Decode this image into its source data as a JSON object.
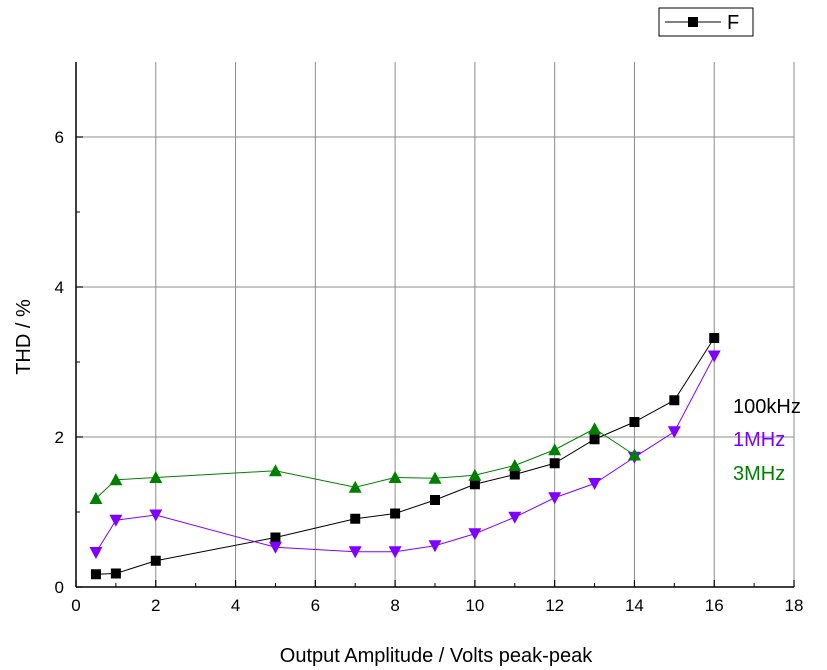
{
  "chart_data": {
    "type": "line",
    "xlabel": "Output Amplitude / Volts peak-peak",
    "ylabel": "THD / %",
    "xlim": [
      0,
      18
    ],
    "ylim": [
      0,
      7
    ],
    "x_ticks": [
      0,
      2,
      4,
      6,
      8,
      10,
      12,
      14,
      16,
      18
    ],
    "y_ticks": [
      0,
      2,
      4,
      6
    ],
    "x_tick_labels": [
      "0",
      "2",
      "4",
      "6",
      "8",
      "10",
      "12",
      "14",
      "16",
      "18"
    ],
    "y_tick_labels": [
      "0",
      "2",
      "4",
      "6"
    ],
    "grid": true,
    "legend": {
      "position": "top-right",
      "entries": [
        "F"
      ]
    },
    "series": [
      {
        "name": "F",
        "color": "#000000",
        "marker": "square",
        "x": [
          0.5,
          1,
          2,
          5,
          7,
          8,
          9,
          10,
          11,
          12,
          13,
          14,
          15,
          16
        ],
        "y": [
          0.17,
          0.18,
          0.35,
          0.66,
          0.91,
          0.98,
          1.16,
          1.37,
          1.5,
          1.65,
          1.97,
          2.2,
          2.49,
          3.32
        ]
      },
      {
        "color": "#8000ff",
        "marker": "triangle-down",
        "x": [
          0.5,
          1,
          2,
          5,
          7,
          8,
          9,
          10,
          11,
          12,
          13,
          14,
          15,
          16
        ],
        "y": [
          0.46,
          0.89,
          0.96,
          0.53,
          0.47,
          0.47,
          0.55,
          0.71,
          0.93,
          1.19,
          1.38,
          1.73,
          2.07,
          3.08
        ]
      },
      {
        "color": "#008000",
        "marker": "triangle-up",
        "x": [
          0.5,
          1,
          2,
          5,
          7,
          8,
          9,
          10,
          11,
          12,
          13,
          14
        ],
        "y": [
          1.18,
          1.43,
          1.46,
          1.55,
          1.33,
          1.46,
          1.45,
          1.49,
          1.62,
          1.83,
          2.11,
          1.76
        ]
      }
    ],
    "annotations": [
      {
        "text": "100kHz",
        "color": "#000000"
      },
      {
        "text": "1MHz",
        "color": "#8000ff"
      },
      {
        "text": "3MHz",
        "color": "#008000"
      }
    ]
  }
}
